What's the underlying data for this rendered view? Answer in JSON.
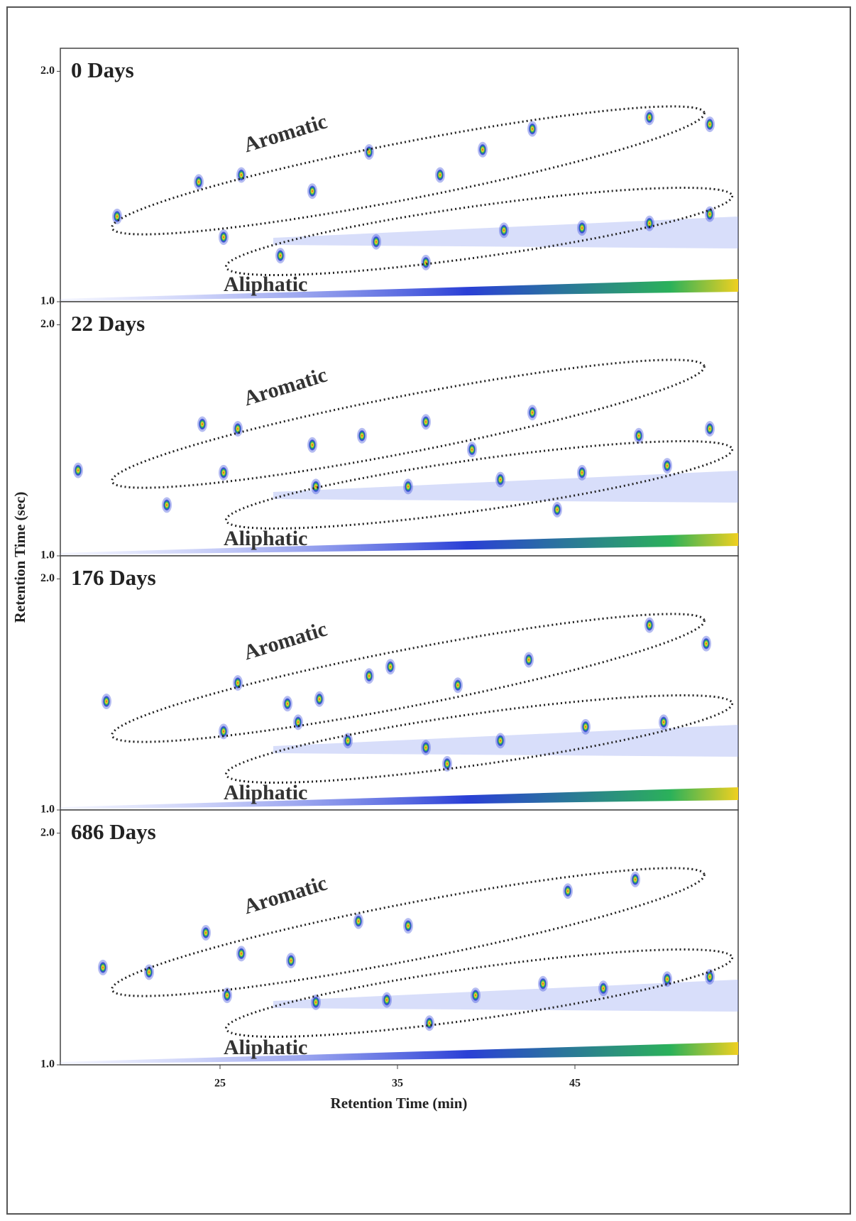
{
  "chart_data": [
    {
      "type": "scatter",
      "label": "0 Days",
      "annotations": [
        "Aromatic",
        "Aliphatic"
      ],
      "ylabel": "Retention Time (sec)",
      "color": "#2a3fd6",
      "x": [
        19.2,
        26.2,
        30.2,
        33.4,
        37.4,
        39.8,
        42.6,
        49.2,
        52.6,
        25.2,
        33.8,
        41,
        45.4,
        49.2,
        52.6,
        36.6,
        28.4,
        23.8
      ],
      "y": [
        1.37,
        1.55,
        1.48,
        1.65,
        1.55,
        1.66,
        1.75,
        1.8,
        1.77,
        1.28,
        1.26,
        1.31,
        1.32,
        1.34,
        1.38,
        1.17,
        1.2,
        1.52
      ],
      "xlim": [
        16,
        54.2
      ],
      "ylim": [
        1.0,
        2.1
      ],
      "yticks": [
        {
          "value": 1.0,
          "label": "1.0"
        },
        {
          "value": 2.0,
          "label": "2.0"
        }
      ]
    },
    {
      "type": "scatter",
      "label": "22 Days",
      "annotations": [
        "Aromatic",
        "Aliphatic"
      ],
      "color": "#2a3fd6",
      "x": [
        17,
        24,
        26,
        30.2,
        33,
        36.6,
        39.2,
        42.6,
        48.6,
        52.6,
        25.2,
        30.4,
        35.6,
        40.8,
        45.4,
        50.2,
        22,
        44
      ],
      "y": [
        1.37,
        1.57,
        1.55,
        1.48,
        1.52,
        1.58,
        1.46,
        1.62,
        1.52,
        1.55,
        1.36,
        1.3,
        1.3,
        1.33,
        1.36,
        1.39,
        1.22,
        1.2
      ],
      "xlim": [
        16,
        54.2
      ],
      "ylim": [
        1.0,
        2.1
      ],
      "yticks": [
        {
          "value": 1.0,
          "label": "1.0"
        },
        {
          "value": 2.0,
          "label": "2.0"
        }
      ]
    },
    {
      "type": "scatter",
      "label": "176 Days",
      "annotations": [
        "Aromatic",
        "Aliphatic"
      ],
      "color": "#2a3fd6",
      "x": [
        18.6,
        26,
        28.8,
        30.6,
        33.4,
        34.6,
        38.4,
        42.4,
        49.2,
        52.4,
        25.2,
        29.4,
        32.2,
        36.6,
        40.8,
        45.6,
        50,
        37.8
      ],
      "y": [
        1.47,
        1.55,
        1.46,
        1.48,
        1.58,
        1.62,
        1.54,
        1.65,
        1.8,
        1.72,
        1.34,
        1.38,
        1.3,
        1.27,
        1.3,
        1.36,
        1.38,
        1.2
      ],
      "xlim": [
        16,
        54.2
      ],
      "ylim": [
        1.0,
        2.1
      ],
      "yticks": [
        {
          "value": 1.0,
          "label": "1.0"
        },
        {
          "value": 2.0,
          "label": "2.0"
        }
      ]
    },
    {
      "type": "scatter",
      "label": "686 Days",
      "annotations": [
        "Aromatic",
        "Aliphatic"
      ],
      "xlabel": "Retention Time (min)",
      "color": "#2a3fd6",
      "x": [
        18.4,
        21,
        24.2,
        26.2,
        29,
        32.8,
        35.6,
        44.6,
        48.4,
        25.4,
        30.4,
        34.4,
        39.4,
        43.2,
        46.6,
        50.2,
        52.6,
        36.8
      ],
      "y": [
        1.42,
        1.4,
        1.57,
        1.48,
        1.45,
        1.62,
        1.6,
        1.75,
        1.8,
        1.3,
        1.27,
        1.28,
        1.3,
        1.35,
        1.33,
        1.37,
        1.38,
        1.18
      ],
      "xlim": [
        16,
        54.2
      ],
      "ylim": [
        1.0,
        2.1
      ],
      "yticks": [
        {
          "value": 1.0,
          "label": "1.0"
        },
        {
          "value": 2.0,
          "label": "2.0"
        }
      ],
      "xticks": [
        25,
        35,
        45
      ]
    }
  ]
}
